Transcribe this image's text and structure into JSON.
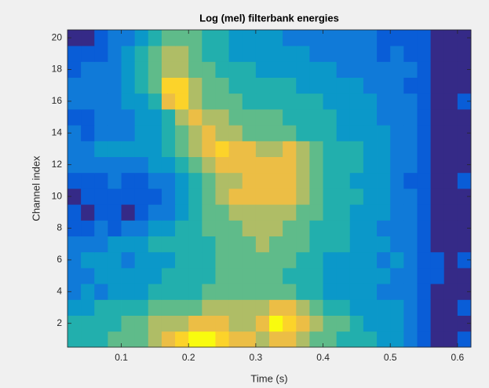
{
  "chart_data": {
    "type": "heatmap",
    "title": "Log (mel) filterbank energies",
    "x_label": "Time (s)",
    "y_label": "Channel index",
    "colormap": "parula",
    "x": [
      0.03,
      0.05,
      0.07,
      0.09,
      0.11,
      0.13,
      0.15,
      0.17,
      0.19,
      0.21,
      0.23,
      0.25,
      0.27,
      0.29,
      0.31,
      0.33,
      0.35,
      0.37,
      0.39,
      0.41,
      0.43,
      0.45,
      0.47,
      0.49,
      0.51,
      0.53,
      0.55,
      0.57,
      0.59,
      0.61
    ],
    "y": [
      1,
      2,
      3,
      4,
      5,
      6,
      7,
      8,
      9,
      10,
      11,
      12,
      13,
      14,
      15,
      16,
      17,
      18,
      19,
      20
    ],
    "values": [
      [
        5,
        5,
        5,
        6,
        6,
        6,
        7,
        8,
        9,
        10,
        10,
        9,
        8,
        8,
        7,
        8,
        8,
        7,
        6,
        6,
        5,
        5,
        5,
        4,
        4,
        3,
        2,
        1,
        1,
        2
      ],
      [
        5,
        5,
        5,
        5,
        6,
        6,
        7,
        7,
        7,
        8,
        8,
        8,
        7,
        7,
        8,
        10,
        9,
        8,
        7,
        6,
        6,
        5,
        4,
        4,
        4,
        3,
        2,
        1,
        1,
        1
      ],
      [
        4,
        4,
        5,
        5,
        5,
        5,
        6,
        6,
        6,
        6,
        7,
        7,
        7,
        7,
        7,
        8,
        8,
        7,
        6,
        5,
        5,
        4,
        4,
        4,
        4,
        3,
        2,
        1,
        1,
        2
      ],
      [
        3,
        4,
        3,
        4,
        4,
        4,
        5,
        5,
        5,
        5,
        6,
        6,
        6,
        6,
        6,
        6,
        6,
        5,
        5,
        4,
        4,
        4,
        4,
        3,
        3,
        3,
        2,
        1,
        1,
        1
      ],
      [
        3,
        3,
        4,
        4,
        4,
        4,
        4,
        5,
        5,
        5,
        5,
        6,
        6,
        6,
        6,
        6,
        5,
        5,
        5,
        4,
        4,
        4,
        4,
        4,
        3,
        3,
        2,
        2,
        1,
        1
      ],
      [
        3,
        4,
        4,
        4,
        3,
        4,
        4,
        4,
        5,
        5,
        5,
        6,
        6,
        6,
        6,
        6,
        6,
        5,
        5,
        4,
        4,
        4,
        4,
        3,
        4,
        3,
        2,
        2,
        1,
        2
      ],
      [
        3,
        3,
        3,
        4,
        4,
        4,
        5,
        5,
        5,
        5,
        5,
        6,
        6,
        6,
        7,
        6,
        6,
        6,
        5,
        5,
        5,
        4,
        4,
        4,
        3,
        3,
        2,
        1,
        1,
        1
      ],
      [
        2,
        2,
        3,
        2,
        3,
        3,
        4,
        4,
        5,
        5,
        6,
        6,
        6,
        7,
        7,
        7,
        6,
        6,
        5,
        5,
        5,
        4,
        4,
        3,
        3,
        3,
        2,
        1,
        1,
        1
      ],
      [
        2,
        1,
        2,
        2,
        1,
        2,
        3,
        3,
        4,
        5,
        6,
        6,
        7,
        7,
        7,
        7,
        7,
        6,
        6,
        5,
        5,
        4,
        4,
        4,
        3,
        3,
        2,
        1,
        1,
        1
      ],
      [
        1,
        2,
        2,
        2,
        2,
        2,
        2,
        3,
        4,
        5,
        6,
        7,
        8,
        8,
        8,
        8,
        8,
        7,
        6,
        5,
        5,
        5,
        4,
        4,
        3,
        3,
        2,
        1,
        1,
        1
      ],
      [
        2,
        2,
        2,
        3,
        2,
        2,
        3,
        3,
        4,
        5,
        6,
        7,
        7,
        8,
        8,
        8,
        8,
        7,
        6,
        5,
        5,
        4,
        4,
        4,
        3,
        2,
        2,
        1,
        1,
        2
      ],
      [
        3,
        3,
        3,
        3,
        3,
        3,
        4,
        4,
        5,
        6,
        7,
        8,
        8,
        8,
        8,
        8,
        8,
        7,
        6,
        5,
        5,
        5,
        4,
        4,
        3,
        3,
        2,
        1,
        1,
        1
      ],
      [
        3,
        3,
        4,
        4,
        4,
        4,
        4,
        5,
        6,
        7,
        8,
        9,
        8,
        8,
        7,
        7,
        8,
        7,
        6,
        5,
        5,
        5,
        4,
        4,
        3,
        3,
        2,
        1,
        1,
        1
      ],
      [
        3,
        2,
        3,
        3,
        3,
        4,
        4,
        5,
        6,
        7,
        8,
        7,
        7,
        6,
        6,
        6,
        6,
        5,
        5,
        5,
        4,
        4,
        4,
        4,
        3,
        3,
        2,
        1,
        1,
        1
      ],
      [
        2,
        2,
        3,
        3,
        3,
        4,
        4,
        5,
        7,
        8,
        7,
        7,
        6,
        6,
        6,
        6,
        5,
        5,
        5,
        5,
        4,
        4,
        4,
        3,
        3,
        3,
        2,
        1,
        1,
        1
      ],
      [
        3,
        3,
        3,
        3,
        4,
        4,
        5,
        8,
        9,
        7,
        6,
        6,
        6,
        5,
        5,
        5,
        5,
        5,
        5,
        4,
        4,
        4,
        4,
        3,
        3,
        3,
        2,
        1,
        1,
        2
      ],
      [
        3,
        3,
        3,
        3,
        4,
        5,
        6,
        9,
        9,
        7,
        6,
        6,
        5,
        5,
        5,
        5,
        5,
        4,
        4,
        4,
        4,
        4,
        3,
        3,
        3,
        2,
        2,
        1,
        1,
        1
      ],
      [
        2,
        3,
        3,
        3,
        4,
        5,
        6,
        7,
        7,
        6,
        6,
        5,
        5,
        5,
        4,
        4,
        4,
        4,
        4,
        4,
        3,
        3,
        3,
        3,
        3,
        3,
        2,
        1,
        1,
        1
      ],
      [
        2,
        2,
        2,
        3,
        4,
        5,
        6,
        7,
        7,
        6,
        5,
        5,
        4,
        4,
        4,
        4,
        4,
        4,
        3,
        3,
        3,
        3,
        3,
        2,
        3,
        2,
        2,
        1,
        1,
        1
      ],
      [
        1,
        1,
        2,
        3,
        3,
        4,
        5,
        6,
        6,
        6,
        5,
        5,
        4,
        4,
        4,
        4,
        3,
        3,
        3,
        3,
        3,
        3,
        3,
        2,
        2,
        2,
        2,
        1,
        1,
        1
      ]
    ],
    "xlim": [
      0.02,
      0.62
    ],
    "xticks": [
      0.1,
      0.2,
      0.3,
      0.4,
      0.5,
      0.6
    ],
    "ylim": [
      0.5,
      20.5
    ],
    "yticks": [
      2,
      4,
      6,
      8,
      10,
      12,
      14,
      16,
      18,
      20
    ]
  }
}
